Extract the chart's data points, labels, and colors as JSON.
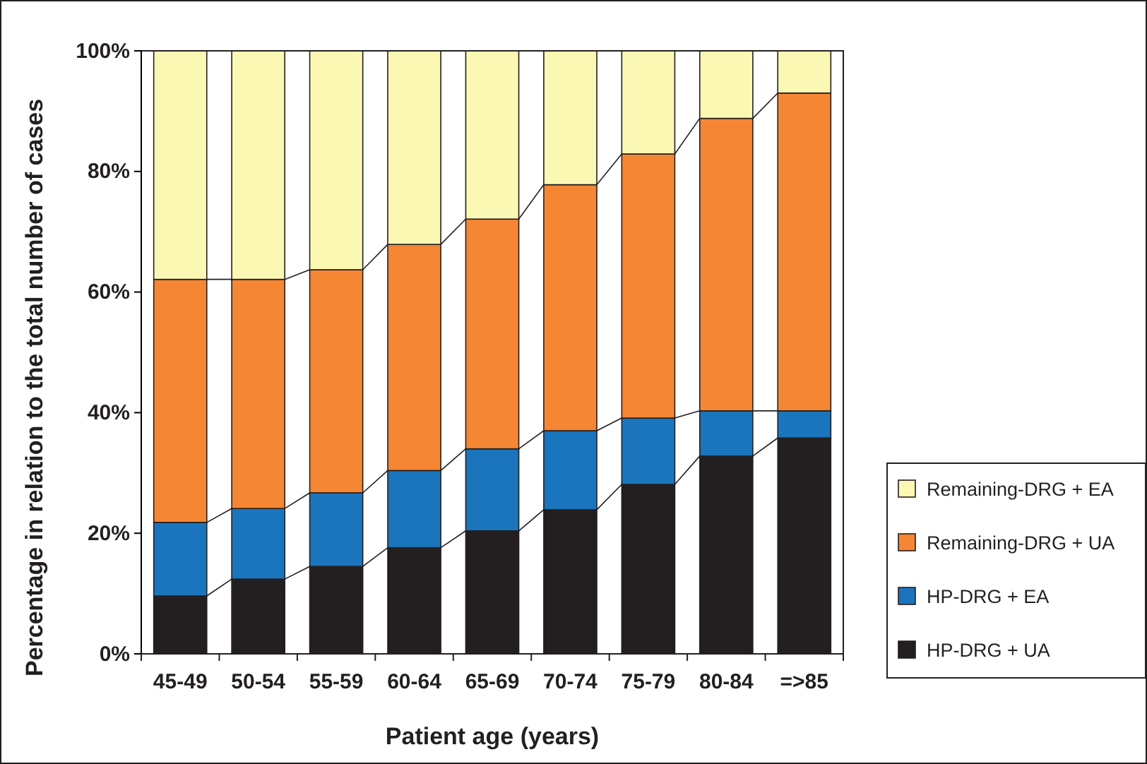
{
  "chart_data": {
    "type": "bar",
    "stacked": true,
    "xlabel": "Patient age (years)",
    "ylabel": "Percentage in relation to the total number of cases",
    "categories": [
      "45-49",
      "50-54",
      "55-59",
      "60-64",
      "65-69",
      "70-74",
      "75-79",
      "80-84",
      "=>85"
    ],
    "series": [
      {
        "name": "HP-DRG + UA",
        "color": "#231f20",
        "values": [
          9.6,
          12.4,
          14.5,
          17.6,
          20.4,
          23.9,
          28.1,
          32.8,
          35.8
        ]
      },
      {
        "name": "HP-DRG + EA",
        "color": "#1b75bc",
        "values": [
          12.2,
          11.7,
          12.2,
          12.8,
          13.6,
          13.1,
          11.0,
          7.5,
          4.5
        ]
      },
      {
        "name": "Remaining-DRG + UA",
        "color": "#f58634",
        "values": [
          40.3,
          38.0,
          37.0,
          37.5,
          38.1,
          40.8,
          43.8,
          48.5,
          52.7
        ]
      },
      {
        "name": "Remaining-DRG + EA",
        "color": "#fbf8b4",
        "values": [
          37.9,
          37.9,
          36.3,
          32.1,
          27.9,
          22.2,
          17.1,
          11.2,
          7.0
        ]
      }
    ],
    "ylim": [
      0,
      100
    ],
    "yticks": [
      {
        "value": 0,
        "label": "0%"
      },
      {
        "value": 20,
        "label": "20%"
      },
      {
        "value": 40,
        "label": "40%"
      },
      {
        "value": 60,
        "label": "60%"
      },
      {
        "value": 80,
        "label": "80%"
      },
      {
        "value": 100,
        "label": "100%"
      }
    ],
    "grid": false,
    "legend": "right"
  }
}
